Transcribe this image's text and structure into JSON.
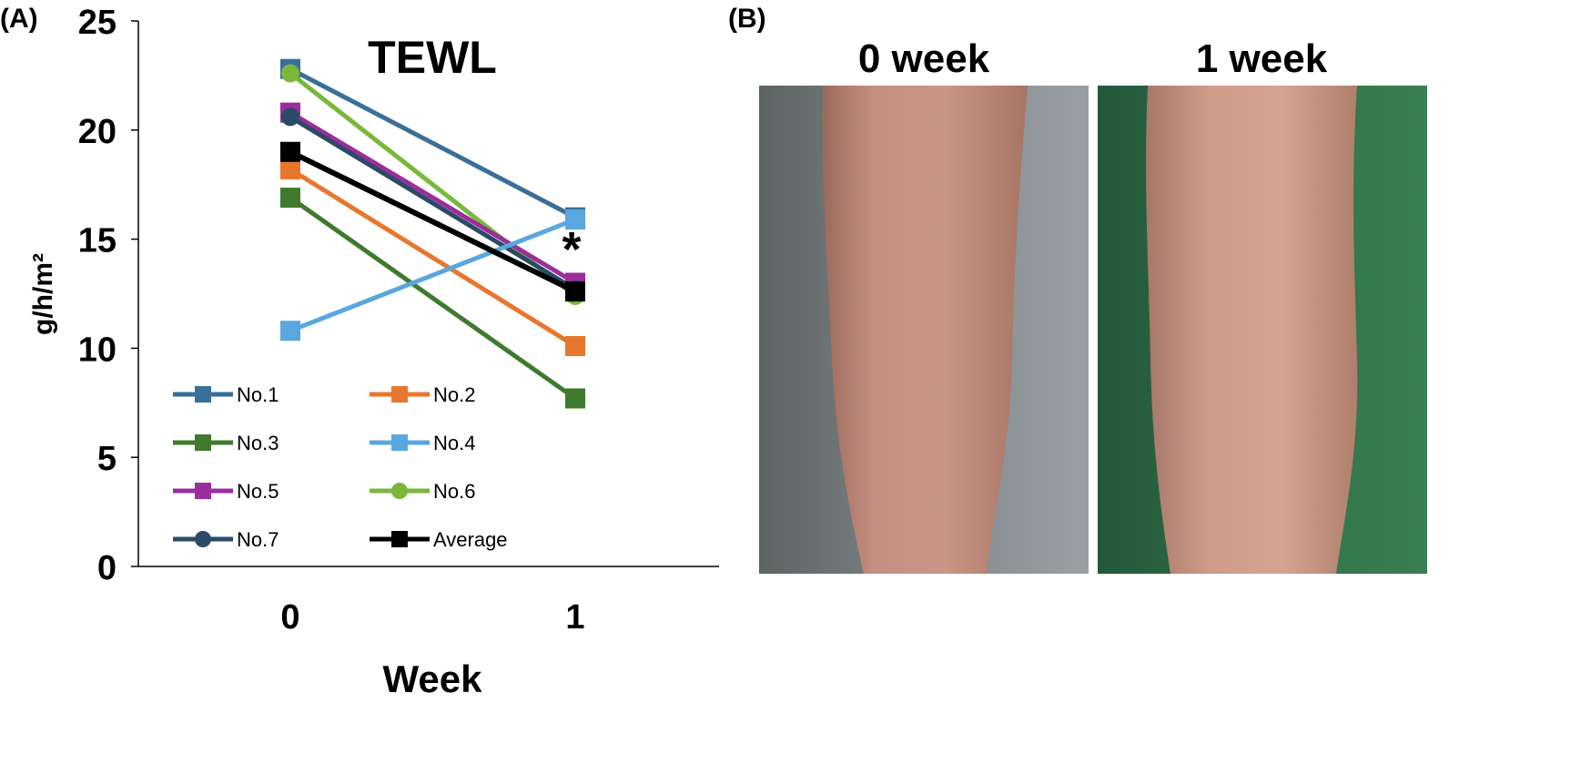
{
  "panel_a_label": "(A)",
  "panel_b_label": "(B)",
  "significance_marker": "*",
  "chart_data": {
    "type": "line",
    "title": "TEWL",
    "xlabel": "Week",
    "ylabel": "g/h/m²",
    "categories": [
      "0",
      "1"
    ],
    "ylim": [
      0,
      25
    ],
    "yticks": [
      "0",
      "5",
      "10",
      "15",
      "20",
      "25"
    ],
    "grid": false,
    "legend_position": "bottom-left",
    "series": [
      {
        "name": "No.1",
        "values": [
          22.8,
          16.0
        ],
        "color": "#3a6f99",
        "marker": "square"
      },
      {
        "name": "No.2",
        "values": [
          18.2,
          10.1
        ],
        "color": "#e8772e",
        "marker": "square"
      },
      {
        "name": "No.3",
        "values": [
          16.9,
          7.7
        ],
        "color": "#3f7a2e",
        "marker": "square"
      },
      {
        "name": "No.4",
        "values": [
          10.8,
          15.9
        ],
        "color": "#5aa7df",
        "marker": "square"
      },
      {
        "name": "No.5",
        "values": [
          20.8,
          13.0
        ],
        "color": "#9a2e9a",
        "marker": "square"
      },
      {
        "name": "No.6",
        "values": [
          22.6,
          12.4
        ],
        "color": "#7ab83c",
        "marker": "circle"
      },
      {
        "name": "No.7",
        "values": [
          20.6,
          12.7
        ],
        "color": "#2a4a66",
        "marker": "circle"
      },
      {
        "name": "Average",
        "values": [
          19.0,
          12.6
        ],
        "color": "#000000",
        "marker": "square"
      }
    ]
  },
  "photos": [
    {
      "label": "0 week",
      "background_color": "#6f7473",
      "skin_color": "#c99585"
    },
    {
      "label": "1 week",
      "background_color": "#2d6b45",
      "skin_color": "#cf9c89"
    }
  ]
}
